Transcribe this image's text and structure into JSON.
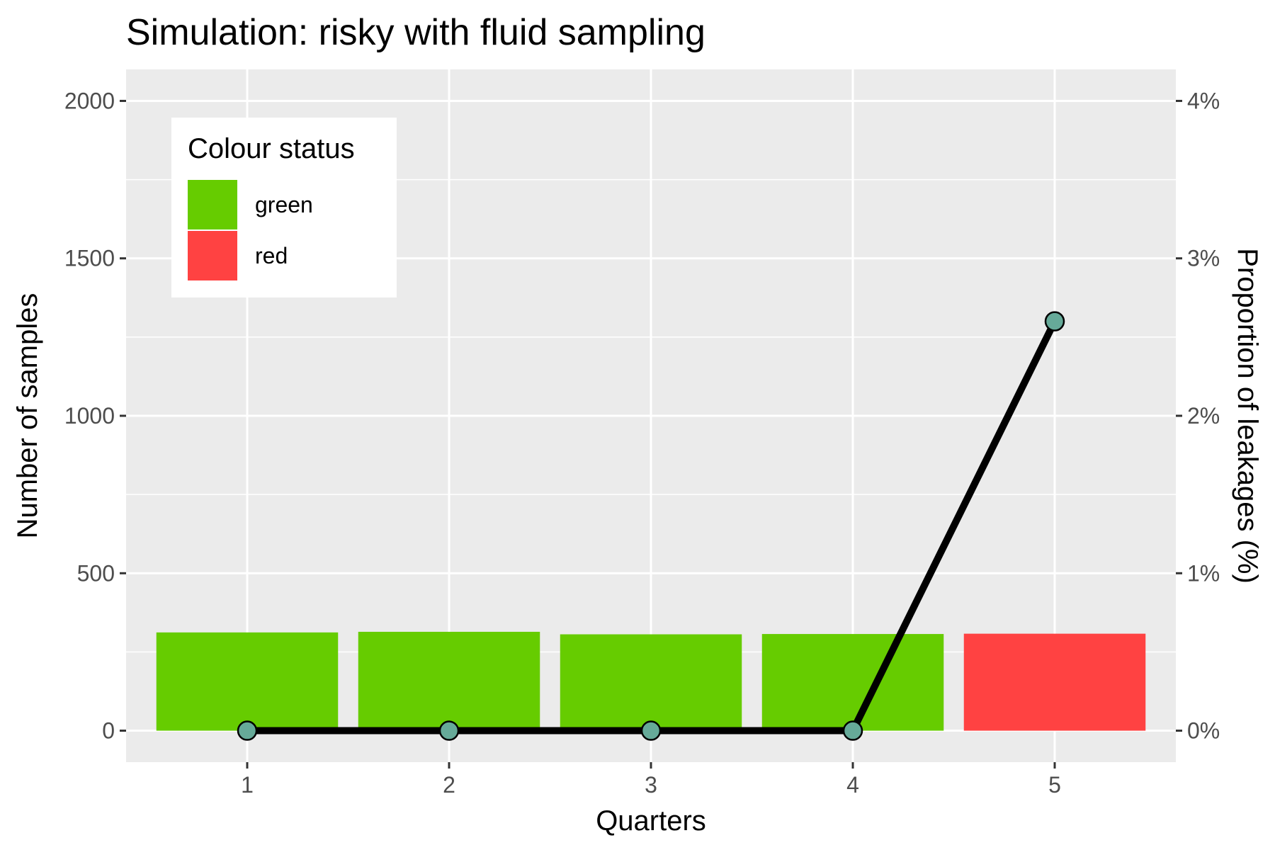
{
  "chart_data": {
    "type": "bar",
    "title": "Simulation: risky with fluid sampling",
    "xlabel": "Quarters",
    "ylabel": "Number of samples",
    "y2label": "Proportion of leakages (%)",
    "categories": [
      "1",
      "2",
      "3",
      "4",
      "5"
    ],
    "bars": {
      "values": [
        312,
        314,
        306,
        307,
        308
      ],
      "status": [
        "green",
        "green",
        "green",
        "green",
        "red"
      ]
    },
    "line": {
      "values_percent": [
        0,
        0,
        0,
        0,
        2.6
      ]
    },
    "ylim": [
      -100,
      2100
    ],
    "y_ticks": [
      0,
      500,
      1000,
      1500,
      2000
    ],
    "y2_ticks": [
      0,
      1,
      2,
      3,
      4
    ],
    "y2_tick_labels": [
      "0%",
      "1%",
      "2%",
      "3%",
      "4%"
    ],
    "y2_scale_per_unit": 500,
    "legend": {
      "title": "Colour status",
      "position": "top-left-inside",
      "entries": [
        {
          "label": "green",
          "color": "#66CC00"
        },
        {
          "label": "red",
          "color": "#FF4242"
        }
      ]
    },
    "grid": true,
    "colors": {
      "panel": "#EBEBEB",
      "grid": "#FFFFFF",
      "line": "#000000",
      "point_fill": "#66AA99"
    }
  }
}
